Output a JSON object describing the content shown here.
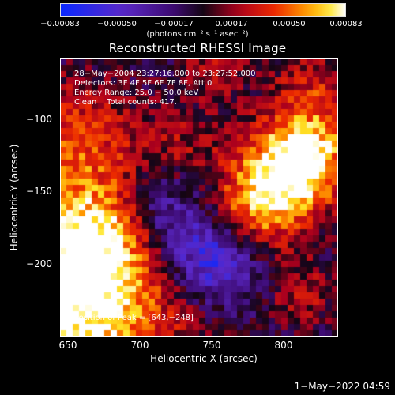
{
  "colorbar": {
    "ticks": [
      "−0.00083",
      "−0.00050",
      "−0.00017",
      "0.00017",
      "0.00050",
      "0.00083"
    ],
    "unit": "(photons cm⁻² s⁻¹ asec⁻²)"
  },
  "title": "Reconstructed RHESSI Image",
  "info": {
    "line1": "28−May−2004 23:27:16.000 to 23:27:52.000",
    "line2": "Detectors: 3F 4F 5F 6F 7F 8F, Att 0",
    "line3": "Energy Range: 25.0 − 50.0 keV",
    "line4": "Clean    Total counts: 417."
  },
  "peak": "Position of Peak = [643,−248]",
  "axes": {
    "xlabel": "Heliocentric X (arcsec)",
    "ylabel": "Heliocentric Y (arcsec)",
    "xticks": [
      "650",
      "700",
      "750",
      "800"
    ],
    "yticks": [
      "−100",
      "−150",
      "−200"
    ]
  },
  "timestamp": "1−May−2022 04:59",
  "colors": {
    "low": "#0a2aff",
    "mid": "#1a1a1a",
    "high": "#ffffff"
  }
}
